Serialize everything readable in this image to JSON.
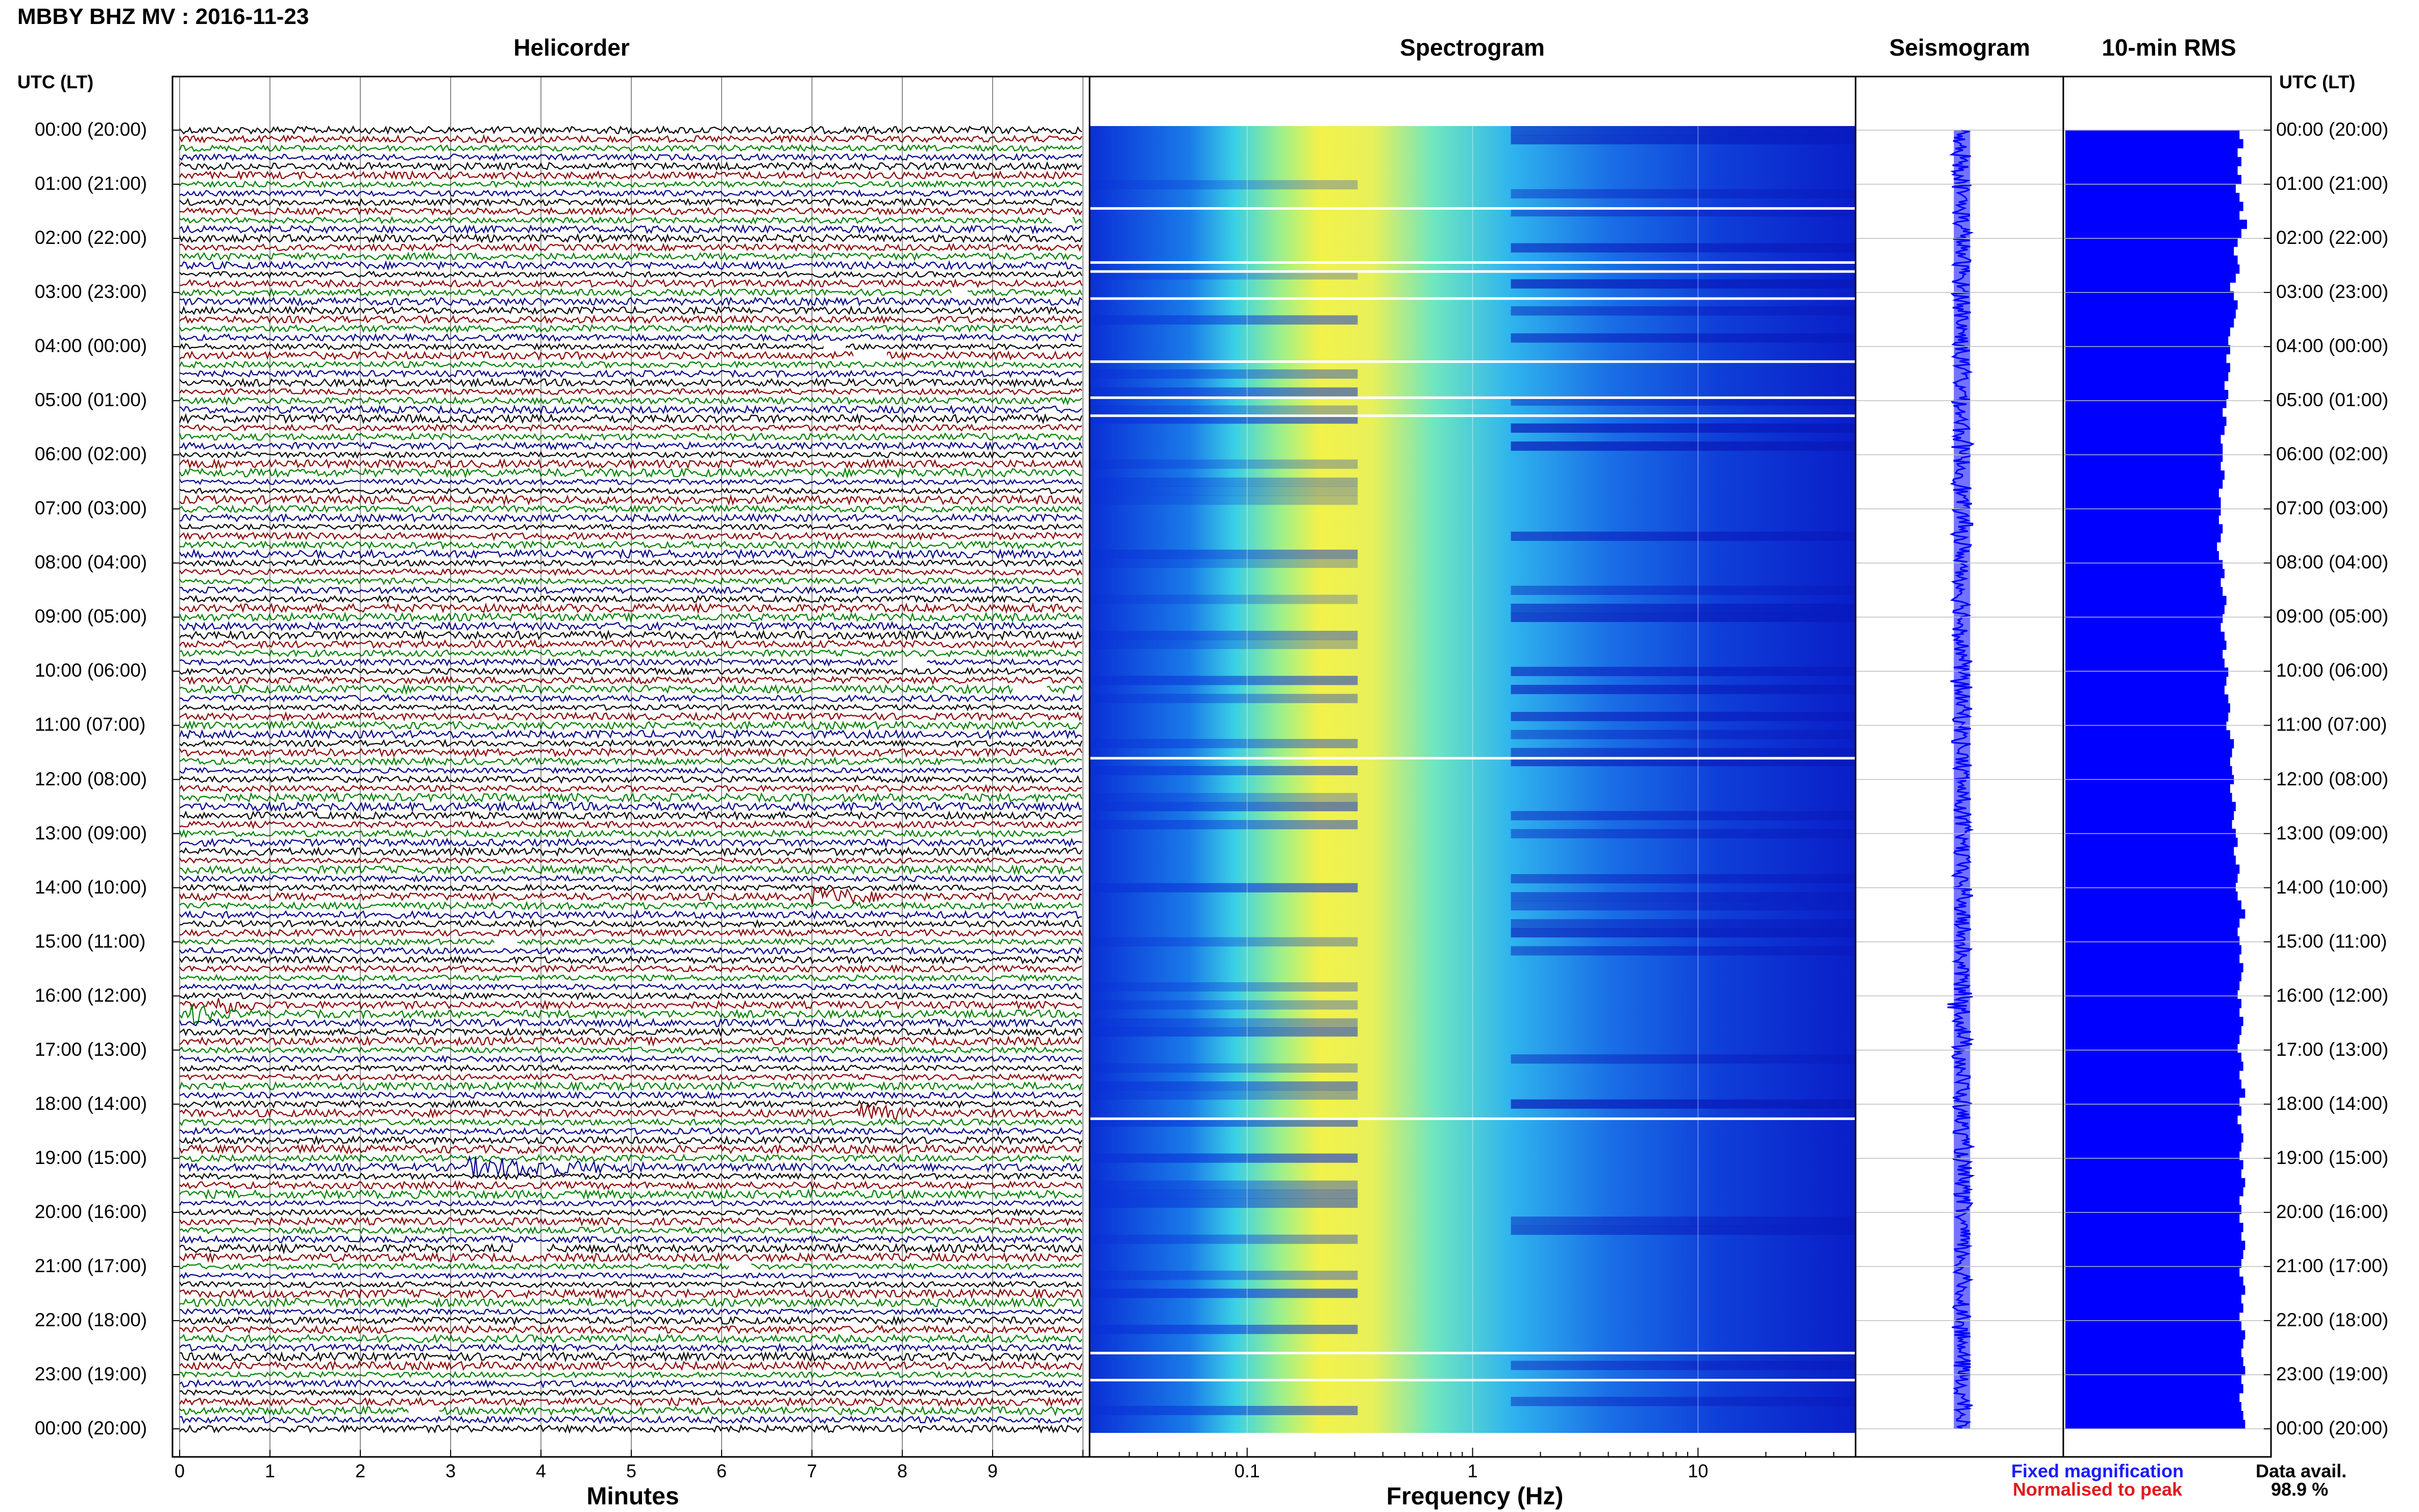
{
  "header": {
    "title": "MBBY BHZ MV : 2016-11-23",
    "utc_lt_label": "UTC (LT)"
  },
  "panels": {
    "helicorder": "Helicorder",
    "spectrogram": "Spectrogram",
    "seismogram": "Seismogram",
    "rms": "10-min RMS"
  },
  "axes": {
    "minutes_label": "Minutes",
    "frequency_label": "Frequency (Hz)",
    "minute_ticks": [
      "0",
      "1",
      "2",
      "3",
      "4",
      "5",
      "6",
      "7",
      "8",
      "9"
    ],
    "frequency_ticks": [
      "0.1",
      "1",
      "10"
    ]
  },
  "time_labels": [
    "00:00 (20:00)",
    "01:00 (21:00)",
    "02:00 (22:00)",
    "03:00 (23:00)",
    "04:00 (00:00)",
    "05:00 (01:00)",
    "06:00 (02:00)",
    "07:00 (03:00)",
    "08:00 (04:00)",
    "09:00 (05:00)",
    "10:00 (06:00)",
    "11:00 (07:00)",
    "12:00 (08:00)",
    "13:00 (09:00)",
    "14:00 (10:00)",
    "15:00 (11:00)",
    "16:00 (12:00)",
    "17:00 (13:00)",
    "18:00 (14:00)",
    "19:00 (15:00)",
    "20:00 (16:00)",
    "21:00 (17:00)",
    "22:00 (18:00)",
    "23:00 (19:00)",
    "00:00 (20:00)"
  ],
  "legend": {
    "fixed": "Fixed magnification",
    "normalised": "Normalised to peak",
    "data_avail_label": "Data avail.",
    "data_avail_value": "98.9 %"
  },
  "colors": {
    "fixed": "#1a1aff",
    "normalised": "#e11a1a",
    "trace_cycle": [
      "#000000",
      "#8b0000",
      "#008000",
      "#00008b"
    ],
    "rms_bar": "#0000ff",
    "seismogram": "#0000ff"
  },
  "chart_data": {
    "type": "heatmap",
    "title": "MBBY BHZ MV : 2016-11-23",
    "helicorder": {
      "xlabel": "Minutes",
      "xlim": [
        0,
        10
      ],
      "x_ticks": [
        0,
        1,
        2,
        3,
        4,
        5,
        6,
        7,
        8,
        9
      ],
      "rows": 145,
      "row_minutes": 10,
      "notable_events": [
        {
          "hour": 14.1,
          "minute_start": 7.0,
          "minute_end": 7.9
        },
        {
          "hour": 16.15,
          "minute_start": 0.3,
          "minute_end": 1.0
        },
        {
          "hour": 16.3,
          "minute_start": 0.1,
          "minute_end": 0.6
        },
        {
          "hour": 19.1,
          "minute_start": 3.2,
          "minute_end": 5.4
        },
        {
          "hour": 18.1,
          "minute_start": 7.5,
          "minute_end": 8.2
        }
      ]
    },
    "spectrogram": {
      "xlabel": "Frequency (Hz)",
      "xscale": "log",
      "xlim": [
        0.02,
        50
      ],
      "x_ticks": [
        0.1,
        1,
        10
      ],
      "peak_band_hz": [
        0.15,
        0.6
      ]
    },
    "seismogram": {
      "hours": [
        0,
        24
      ]
    },
    "rms_10min": {
      "values": [
        0.93,
        0.95,
        0.92,
        0.94,
        0.92,
        0.94,
        0.91,
        0.93,
        0.95,
        0.93,
        0.97,
        0.94,
        0.92,
        0.9,
        0.92,
        0.93,
        0.91,
        0.88,
        0.9,
        0.92,
        0.91,
        0.9,
        0.88,
        0.87,
        0.88,
        0.86,
        0.88,
        0.87,
        0.85,
        0.87,
        0.86,
        0.84,
        0.86,
        0.85,
        0.83,
        0.84,
        0.84,
        0.83,
        0.85,
        0.84,
        0.82,
        0.83,
        0.83,
        0.82,
        0.84,
        0.83,
        0.81,
        0.82,
        0.84,
        0.85,
        0.83,
        0.84,
        0.86,
        0.85,
        0.84,
        0.83,
        0.85,
        0.86,
        0.84,
        0.85,
        0.87,
        0.86,
        0.85,
        0.87,
        0.88,
        0.87,
        0.86,
        0.88,
        0.9,
        0.89,
        0.88,
        0.89,
        0.9,
        0.88,
        0.89,
        0.91,
        0.9,
        0.89,
        0.91,
        0.92,
        0.9,
        0.91,
        0.93,
        0.92,
        0.91,
        0.92,
        0.94,
        0.96,
        0.93,
        0.92,
        0.93,
        0.94,
        0.93,
        0.95,
        0.94,
        0.93,
        0.92,
        0.94,
        0.93,
        0.95,
        0.94,
        0.93,
        0.92,
        0.94,
        0.95,
        0.93,
        0.94,
        0.96,
        0.93,
        0.94,
        0.92,
        0.94,
        0.95,
        0.94,
        0.93,
        0.95,
        0.94,
        0.96,
        0.95,
        0.93,
        0.94,
        0.93,
        0.95,
        0.94,
        0.96,
        0.95,
        0.94,
        0.93,
        0.95,
        0.96,
        0.94,
        0.95,
        0.93,
        0.94,
        0.96,
        0.95,
        0.94,
        0.95,
        0.96,
        0.94,
        0.95,
        0.93,
        0.94,
        0.95,
        0.96
      ]
    }
  }
}
